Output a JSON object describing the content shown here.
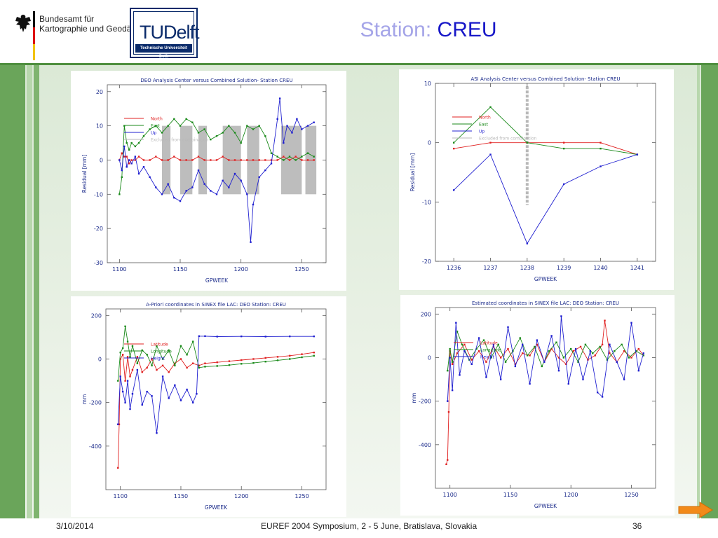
{
  "header": {
    "org_line1": "Bundesamt für",
    "org_line2": "Kartographie und Geodäsie",
    "logo_name": "TUDelft",
    "logo_sub": "Technische Universiteit Delft",
    "title_label": "Station: ",
    "title_station": "CREU"
  },
  "footer": {
    "date": "3/10/2014",
    "event": "EUREF 2004 Symposium, 2 - 5  June, Bratislava, Slovakia",
    "page": "36"
  },
  "chart_data": [
    {
      "type": "line",
      "title": "DEO Analysis Center versus Combined Solution- Station CREU",
      "xlabel": "GPWEEK",
      "ylabel": "Residual [mm]",
      "xlim": [
        1090,
        1270
      ],
      "ylim": [
        -30,
        22
      ],
      "xticks": [
        1100,
        1150,
        1200,
        1250
      ],
      "yticks": [
        -30,
        -20,
        -10,
        0,
        10,
        20
      ],
      "legend": [
        "North",
        "East",
        "Up",
        "Excluded from combination"
      ],
      "colors": [
        "#e02020",
        "#1a8a1a",
        "#2020d0",
        "#b8b8b8"
      ],
      "excluded_ranges": [
        [
          1135,
          1142
        ],
        [
          1150,
          1160
        ],
        [
          1165,
          1172
        ],
        [
          1185,
          1200
        ],
        [
          1205,
          1215
        ],
        [
          1233,
          1250
        ],
        [
          1253,
          1262
        ]
      ],
      "series": [
        {
          "name": "North",
          "x": [
            1100,
            1102,
            1104,
            1106,
            1108,
            1110,
            1113,
            1116,
            1120,
            1125,
            1130,
            1135,
            1140,
            1145,
            1150,
            1155,
            1160,
            1165,
            1170,
            1175,
            1180,
            1185,
            1190,
            1195,
            1200,
            1205,
            1210,
            1215,
            1220,
            1225,
            1230,
            1235,
            1240,
            1245,
            1250,
            1255,
            1260
          ],
          "values": [
            0,
            2,
            1,
            1,
            -1,
            0,
            0,
            1,
            0,
            0,
            1,
            0,
            0,
            1,
            0,
            0,
            0,
            1,
            0,
            0,
            0,
            1,
            0,
            0,
            0,
            0,
            0,
            0,
            0,
            0,
            0,
            1,
            0,
            1,
            0,
            0,
            0
          ]
        },
        {
          "name": "East",
          "x": [
            1100,
            1102,
            1104,
            1106,
            1108,
            1110,
            1113,
            1116,
            1120,
            1125,
            1130,
            1135,
            1140,
            1145,
            1150,
            1155,
            1160,
            1165,
            1170,
            1175,
            1180,
            1185,
            1190,
            1195,
            1200,
            1205,
            1210,
            1215,
            1220,
            1225,
            1230,
            1235,
            1240,
            1245,
            1250,
            1255,
            1260
          ],
          "values": [
            -10,
            -5,
            10,
            5,
            3,
            5,
            4,
            5,
            7,
            9,
            10,
            8,
            10,
            12,
            10,
            12,
            11,
            8,
            9,
            6,
            7,
            8,
            10,
            8,
            5,
            10,
            9,
            10,
            7,
            2,
            1,
            0,
            1,
            0,
            1,
            2,
            1
          ]
        },
        {
          "name": "Up",
          "x": [
            1100,
            1102,
            1104,
            1106,
            1108,
            1110,
            1113,
            1116,
            1120,
            1125,
            1130,
            1135,
            1140,
            1145,
            1150,
            1155,
            1160,
            1165,
            1170,
            1175,
            1180,
            1185,
            1190,
            1195,
            1200,
            1205,
            1208,
            1210,
            1215,
            1220,
            1225,
            1230,
            1232,
            1235,
            1238,
            1242,
            1246,
            1250,
            1255,
            1260
          ],
          "values": [
            0,
            -3,
            4,
            -2,
            0,
            -1,
            1,
            -4,
            -2,
            -5,
            -8,
            -10,
            -7,
            -11,
            -12,
            -9,
            -8,
            -3,
            -7,
            -9,
            -10,
            -6,
            -8,
            -4,
            -6,
            -10,
            -24,
            -13,
            -5,
            -3,
            -1,
            12,
            18,
            5,
            10,
            8,
            12,
            9,
            10,
            11
          ]
        }
      ]
    },
    {
      "type": "line",
      "title": "ASI Analysis Center versus Combined Solution- Station CREU",
      "xlabel": "GPWEEK",
      "ylabel": "Residual [mm]",
      "xlim": [
        1235.5,
        1241.5
      ],
      "ylim": [
        -20,
        10
      ],
      "xticks": [
        1236,
        1237,
        1238,
        1239,
        1240,
        1241
      ],
      "yticks": [
        -20,
        -10,
        0,
        10
      ],
      "legend": [
        "North",
        "East",
        "Up",
        "Excluded from combination"
      ],
      "colors": [
        "#e02020",
        "#1a8a1a",
        "#2020d0",
        "#b8b8b8"
      ],
      "excluded_ranges": [
        [
          1238,
          1238
        ]
      ],
      "series": [
        {
          "name": "North",
          "x": [
            1236,
            1237,
            1238,
            1239,
            1240,
            1241
          ],
          "values": [
            -1,
            0,
            0,
            0,
            0,
            -2
          ]
        },
        {
          "name": "East",
          "x": [
            1236,
            1237,
            1238,
            1239,
            1240,
            1241
          ],
          "values": [
            0,
            6,
            0,
            -1,
            -1,
            -2
          ]
        },
        {
          "name": "Up",
          "x": [
            1236,
            1237,
            1238,
            1239,
            1240,
            1241
          ],
          "values": [
            -8,
            -2,
            -17,
            -7,
            -4,
            -2
          ]
        }
      ]
    },
    {
      "type": "line",
      "title": "A-Priori coordinates in SINEX file   LAC: DEO    Station: CREU",
      "xlabel": "GPWEEK",
      "ylabel": "mm",
      "xlim": [
        1088,
        1270
      ],
      "ylim": [
        -600,
        230
      ],
      "xticks": [
        1100,
        1150,
        1200,
        1250
      ],
      "yticks": [
        -400,
        -200,
        0,
        200
      ],
      "legend": [
        "Latitude",
        "Longitude",
        "Height"
      ],
      "colors": [
        "#e02020",
        "#1a8a1a",
        "#2020d0"
      ],
      "series": [
        {
          "name": "Latitude",
          "x": [
            1098,
            1099,
            1100,
            1102,
            1104,
            1106,
            1108,
            1110,
            1114,
            1118,
            1122,
            1126,
            1130,
            1135,
            1140,
            1145,
            1150,
            1155,
            1160,
            1165,
            1170,
            1180,
            1190,
            1200,
            1210,
            1220,
            1230,
            1240,
            1250,
            1260
          ],
          "values": [
            -500,
            -300,
            0,
            20,
            -100,
            10,
            -80,
            -50,
            10,
            -60,
            -40,
            0,
            -50,
            -30,
            -60,
            -20,
            0,
            -40,
            -20,
            -30,
            -20,
            -15,
            -10,
            -5,
            0,
            5,
            10,
            15,
            22,
            30
          ]
        },
        {
          "name": "Longitude",
          "x": [
            1098,
            1100,
            1102,
            1104,
            1106,
            1108,
            1110,
            1114,
            1118,
            1122,
            1126,
            1130,
            1135,
            1140,
            1145,
            1150,
            1155,
            1160,
            1165,
            1170,
            1180,
            1190,
            1200,
            1210,
            1220,
            1230,
            1240,
            1250,
            1260
          ],
          "values": [
            -100,
            30,
            50,
            150,
            80,
            10,
            60,
            -20,
            40,
            20,
            -30,
            60,
            0,
            40,
            -30,
            60,
            20,
            80,
            -40,
            -35,
            -32,
            -28,
            -22,
            -18,
            -12,
            -6,
            0,
            8,
            15
          ]
        },
        {
          "name": "Height",
          "x": [
            1098,
            1100,
            1102,
            1104,
            1106,
            1108,
            1110,
            1114,
            1118,
            1122,
            1126,
            1130,
            1135,
            1140,
            1145,
            1150,
            1155,
            1160,
            1163,
            1165,
            1170,
            1180,
            1200,
            1220,
            1240,
            1260
          ],
          "values": [
            -300,
            -80,
            -150,
            -200,
            -100,
            -230,
            -160,
            -50,
            -210,
            -150,
            -170,
            -340,
            -80,
            -180,
            -120,
            -190,
            -140,
            -200,
            -160,
            105,
            105,
            103,
            104,
            103,
            104,
            104
          ]
        }
      ]
    },
    {
      "type": "line",
      "title": "Estimated coordinates in SINEX file   LAC: DEO    Station: CREU",
      "xlabel": "GPWEEK",
      "ylabel": "mm",
      "xlim": [
        1088,
        1270
      ],
      "ylim": [
        -600,
        230
      ],
      "xticks": [
        1100,
        1150,
        1200,
        1250
      ],
      "yticks": [
        -400,
        -200,
        0,
        200
      ],
      "legend": [
        "Latitude",
        "Longitude",
        "Height"
      ],
      "colors": [
        "#e02020",
        "#1a8a1a",
        "#2020d0"
      ],
      "series": [
        {
          "name": "Latitude",
          "x": [
            1097,
            1098,
            1099,
            1100,
            1102,
            1106,
            1112,
            1118,
            1124,
            1130,
            1136,
            1142,
            1148,
            1154,
            1160,
            1166,
            1172,
            1178,
            1184,
            1190,
            1196,
            1202,
            1208,
            1214,
            1220,
            1226,
            1228,
            1232,
            1238,
            1244,
            1250,
            1256,
            1260
          ],
          "values": [
            -490,
            -470,
            -250,
            30,
            -30,
            20,
            60,
            -10,
            30,
            -20,
            50,
            0,
            40,
            -30,
            20,
            10,
            60,
            -20,
            40,
            0,
            -30,
            30,
            50,
            -10,
            10,
            60,
            170,
            20,
            -20,
            30,
            0,
            40,
            10
          ]
        },
        {
          "name": "Longitude",
          "x": [
            1098,
            1100,
            1102,
            1106,
            1110,
            1116,
            1122,
            1128,
            1134,
            1140,
            1146,
            1152,
            1158,
            1164,
            1170,
            1176,
            1182,
            1188,
            1194,
            1200,
            1206,
            1212,
            1218,
            1224,
            1230,
            1236,
            1242,
            1248,
            1254,
            1260
          ],
          "values": [
            -60,
            40,
            -20,
            120,
            60,
            -10,
            40,
            80,
            0,
            60,
            -20,
            30,
            90,
            10,
            50,
            -40,
            30,
            70,
            0,
            40,
            -20,
            60,
            20,
            50,
            -10,
            30,
            60,
            0,
            30,
            10
          ]
        },
        {
          "name": "Height",
          "x": [
            1098,
            1100,
            1102,
            1105,
            1108,
            1112,
            1118,
            1124,
            1130,
            1136,
            1142,
            1148,
            1154,
            1160,
            1166,
            1172,
            1178,
            1184,
            1190,
            1192,
            1198,
            1204,
            1210,
            1216,
            1222,
            1226,
            1232,
            1238,
            1244,
            1250,
            1256,
            1260
          ],
          "values": [
            -200,
            0,
            -150,
            160,
            -80,
            30,
            -30,
            90,
            -90,
            60,
            -100,
            140,
            -40,
            60,
            -120,
            80,
            -20,
            100,
            -60,
            190,
            -120,
            40,
            -100,
            30,
            -160,
            -180,
            60,
            -20,
            -100,
            160,
            -60,
            20
          ]
        }
      ]
    }
  ]
}
